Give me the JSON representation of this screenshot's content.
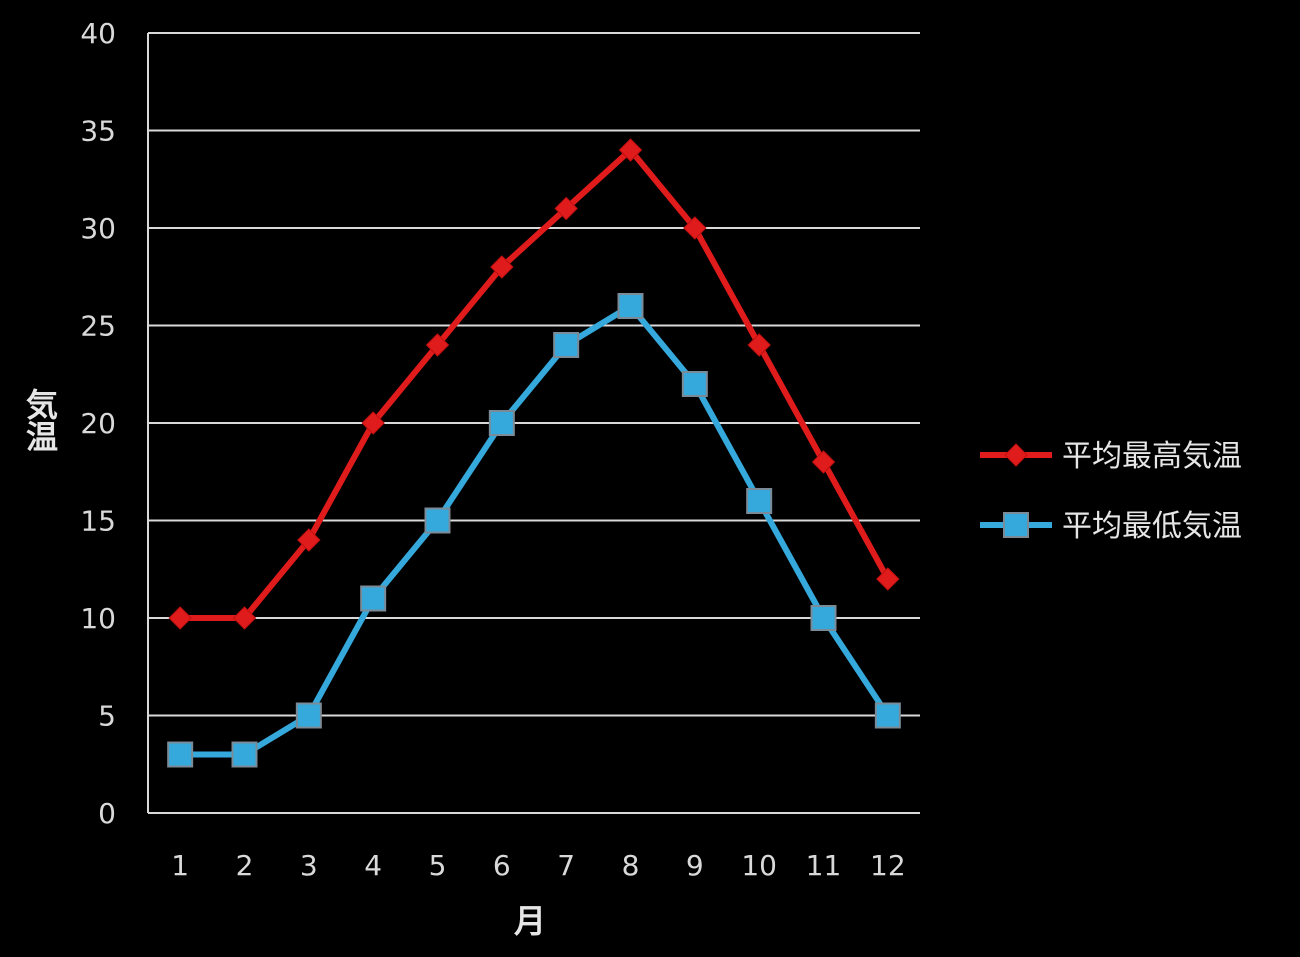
{
  "chart_data": {
    "type": "line",
    "title": "",
    "xlabel": "月",
    "ylabel": "気温",
    "ylim": [
      0,
      40
    ],
    "yticks": [
      0,
      5,
      10,
      15,
      20,
      25,
      30,
      35,
      40
    ],
    "grid": true,
    "legend": "right",
    "categories": [
      "1",
      "2",
      "3",
      "4",
      "5",
      "6",
      "7",
      "8",
      "9",
      "10",
      "11",
      "12"
    ],
    "series": [
      {
        "name": "平均最高気温",
        "color": "#e01b1b",
        "marker": "diamond",
        "values": [
          10,
          10,
          14,
          20,
          24,
          28,
          31,
          34,
          30,
          24,
          18,
          12
        ]
      },
      {
        "name": "平均最低気温",
        "color": "#35a9dc",
        "marker": "square",
        "values": [
          3,
          3,
          5,
          11,
          15,
          20,
          24,
          26,
          22,
          16,
          10,
          5
        ]
      }
    ]
  }
}
